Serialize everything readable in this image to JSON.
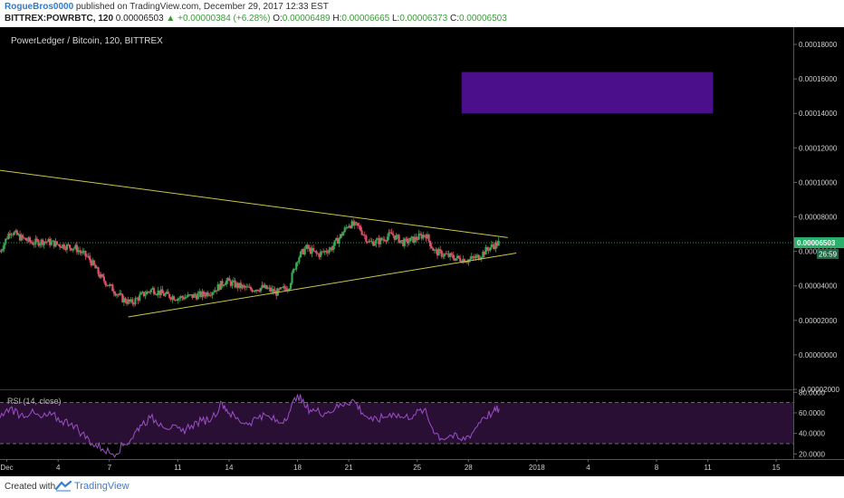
{
  "header": {
    "author": "RogueBros0000",
    "published": " published on TradingView.com, December 29, 2017 12:33 EST",
    "symbol": "BITTREX:POWRBTC, 120",
    "last": "0.00006503",
    "change": "▲ +0.00000384 (+6.28%)",
    "open_label": "O:",
    "open": "0.00006489",
    "high_label": "H:",
    "high": "0.00006665",
    "low_label": "L:",
    "low": "0.00006373",
    "close_label": "C:",
    "close": "0.00006503"
  },
  "chart_data": [
    {
      "type": "candlestick",
      "title": "PowerLedger / Bitcoin, 120, BITTREX",
      "ylim": [
        -2e-05,
        0.00019
      ],
      "y_ticks": [
        "0.00018000",
        "0.00016000",
        "0.00014000",
        "0.00012000",
        "0.00010000",
        "0.00008000",
        "0.00006000",
        "0.00004000",
        "0.00002000",
        "0.00000000",
        "-0.00002000"
      ],
      "x_ticks": [
        "Dec",
        "4",
        "7",
        "11",
        "14",
        "18",
        "21",
        "25",
        "28",
        "2018",
        "4",
        "8",
        "11",
        "15"
      ],
      "x_tick_days": [
        1,
        4,
        7,
        11,
        14,
        18,
        21,
        25,
        28,
        32,
        35,
        39,
        42,
        46
      ],
      "x_range_days": [
        0.6,
        47
      ],
      "last_price_label": "0.00006503",
      "last_price": 6.503e-05,
      "countdown_label": "26:59",
      "price_path": [
        [
          0.6,
          6e-05
        ],
        [
          1.2,
          7.2e-05
        ],
        [
          1.8,
          6.8e-05
        ],
        [
          2.5,
          6.5e-05
        ],
        [
          3.2,
          6.6e-05
        ],
        [
          4.0,
          6.4e-05
        ],
        [
          5.0,
          6.2e-05
        ],
        [
          5.8,
          5.6e-05
        ],
        [
          6.5,
          4.5e-05
        ],
        [
          7.2,
          3.8e-05
        ],
        [
          7.8,
          3.2e-05
        ],
        [
          8.3,
          3e-05
        ],
        [
          8.8,
          3.4e-05
        ],
        [
          9.5,
          3.8e-05
        ],
        [
          10.2,
          3.5e-05
        ],
        [
          11.0,
          3.3e-05
        ],
        [
          11.8,
          3.4e-05
        ],
        [
          12.5,
          3.5e-05
        ],
        [
          13.2,
          3.8e-05
        ],
        [
          13.8,
          4.3e-05
        ],
        [
          14.5,
          4e-05
        ],
        [
          15.2,
          3.8e-05
        ],
        [
          16.0,
          3.9e-05
        ],
        [
          16.8,
          3.6e-05
        ],
        [
          17.5,
          4e-05
        ],
        [
          18.0,
          5.6e-05
        ],
        [
          18.5,
          6.2e-05
        ],
        [
          19.2,
          5.8e-05
        ],
        [
          20.0,
          6.2e-05
        ],
        [
          20.6,
          7e-05
        ],
        [
          21.0,
          7.6e-05
        ],
        [
          21.6,
          7.4e-05
        ],
        [
          22.2,
          6.5e-05
        ],
        [
          22.8,
          6.6e-05
        ],
        [
          23.5,
          7e-05
        ],
        [
          24.2,
          6.5e-05
        ],
        [
          24.8,
          6.7e-05
        ],
        [
          25.5,
          7e-05
        ],
        [
          26.0,
          6e-05
        ],
        [
          26.6,
          5.8e-05
        ],
        [
          27.3,
          5.6e-05
        ],
        [
          28.0,
          5.5e-05
        ],
        [
          28.6,
          5.7e-05
        ],
        [
          29.2,
          6.2e-05
        ],
        [
          29.8,
          6.5e-05
        ]
      ],
      "trendlines": [
        {
          "points": [
            [
              0.6,
              0.000107
            ],
            [
              30.3,
              6.8e-05
            ]
          ],
          "color": "#c8c84a"
        },
        {
          "points": [
            [
              8.1,
              2.2e-05
            ],
            [
              30.8,
              5.9e-05
            ]
          ],
          "color": "#c8c84a"
        }
      ],
      "rectangles": [
        {
          "x": [
            27.6,
            42.3
          ],
          "y": [
            0.00014,
            0.000164
          ],
          "color": "#4b0f8c"
        }
      ]
    },
    {
      "type": "line",
      "title": "RSI (14, close)",
      "ylim": [
        15,
        82
      ],
      "y_ticks": [
        "80.0000",
        "60.0000",
        "40.0000",
        "20.0000"
      ],
      "bands": [
        70,
        30
      ],
      "series": [
        {
          "values": [
            [
              0.6,
              55
            ],
            [
              1.2,
              65
            ],
            [
              1.8,
              58
            ],
            [
              2.4,
              60
            ],
            [
              3.0,
              55
            ],
            [
              3.6,
              58
            ],
            [
              4.2,
              52
            ],
            [
              4.8,
              50
            ],
            [
              5.4,
              40
            ],
            [
              6.0,
              30
            ],
            [
              6.6,
              25
            ],
            [
              7.2,
              20
            ],
            [
              7.8,
              28
            ],
            [
              8.3,
              35
            ],
            [
              8.8,
              48
            ],
            [
              9.4,
              55
            ],
            [
              10.0,
              50
            ],
            [
              10.6,
              45
            ],
            [
              11.2,
              42
            ],
            [
              11.8,
              48
            ],
            [
              12.4,
              52
            ],
            [
              13.0,
              55
            ],
            [
              13.6,
              70
            ],
            [
              14.0,
              60
            ],
            [
              14.6,
              52
            ],
            [
              15.2,
              50
            ],
            [
              15.8,
              58
            ],
            [
              16.4,
              55
            ],
            [
              17.0,
              50
            ],
            [
              17.5,
              60
            ],
            [
              18.0,
              78
            ],
            [
              18.5,
              65
            ],
            [
              19.0,
              62
            ],
            [
              19.6,
              60
            ],
            [
              20.2,
              64
            ],
            [
              20.8,
              70
            ],
            [
              21.3,
              72
            ],
            [
              21.8,
              60
            ],
            [
              22.4,
              52
            ],
            [
              23.0,
              55
            ],
            [
              23.6,
              60
            ],
            [
              24.2,
              55
            ],
            [
              24.8,
              58
            ],
            [
              25.4,
              63
            ],
            [
              25.9,
              45
            ],
            [
              26.4,
              35
            ],
            [
              27.0,
              38
            ],
            [
              27.6,
              33
            ],
            [
              28.2,
              40
            ],
            [
              28.8,
              55
            ],
            [
              29.4,
              60
            ],
            [
              29.8,
              64
            ]
          ]
        }
      ]
    }
  ],
  "footer": {
    "created": "Created with",
    "brand": "TradingView"
  },
  "colors": {
    "background": "#000000",
    "candle_up": "#3aa851",
    "candle_down": "#e0506a",
    "rsi_line": "#9b4fc6",
    "rsi_band_fill": "#2a0f35",
    "trendline": "#c8c84a",
    "price_label_bg": "#2ab06a"
  }
}
